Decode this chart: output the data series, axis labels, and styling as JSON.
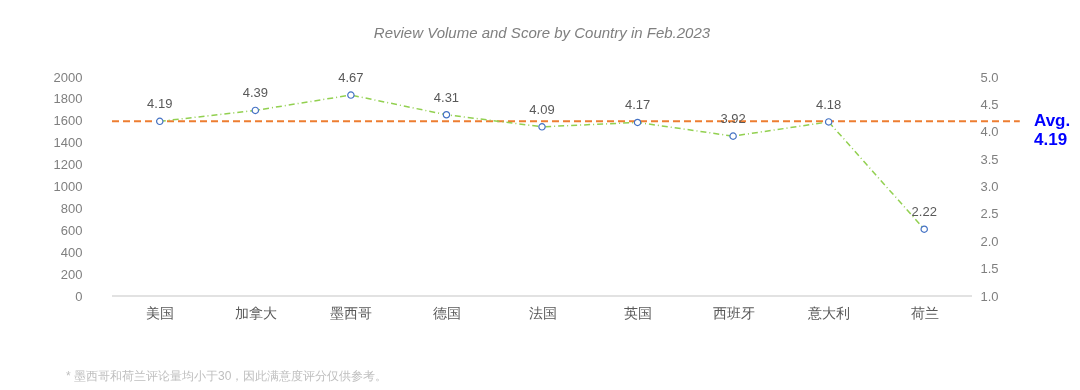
{
  "chart_data": {
    "type": "line",
    "title": "Review Volume and Score by Country in Feb.2023",
    "categories": [
      "美国",
      "加拿大",
      "墨西哥",
      "德国",
      "法国",
      "英国",
      "西班牙",
      "意大利",
      "荷兰"
    ],
    "series": [
      {
        "color": "#92d050",
        "axis": "y2",
        "values": [
          4.19,
          4.39,
          4.67,
          4.31,
          4.09,
          4.17,
          3.92,
          4.18,
          2.22
        ]
      }
    ],
    "ylim": [
      0,
      2000
    ],
    "yticks": [
      0,
      200,
      400,
      600,
      800,
      1000,
      1200,
      1400,
      1600,
      1800,
      2000
    ],
    "y2lim": [
      1.0,
      5.0
    ],
    "y2ticks": [
      {
        "value": 1,
        "label": "1.0"
      },
      {
        "value": 1.5,
        "label": "1.5"
      },
      {
        "value": 2,
        "label": "2.0"
      },
      {
        "value": 2.5,
        "label": "2.5"
      },
      {
        "value": 3,
        "label": "3.0"
      },
      {
        "value": 3.5,
        "label": "3.5"
      },
      {
        "value": 4,
        "label": "4.0"
      },
      {
        "value": 4.5,
        "label": "4.5"
      },
      {
        "value": 5,
        "label": "5.0"
      }
    ],
    "ref_lines": [
      {
        "axis": "y2",
        "value": 4.19,
        "label": "Avg. 4.19",
        "color": "#ed7d31",
        "line_style": "dashed"
      }
    ],
    "data_labels": true,
    "marker": "circle",
    "line_style": "dashed",
    "grid": false,
    "annotations": [
      "* 墨西哥和荷兰评论量均小于30，因此满意度评分仅供参考。"
    ]
  }
}
